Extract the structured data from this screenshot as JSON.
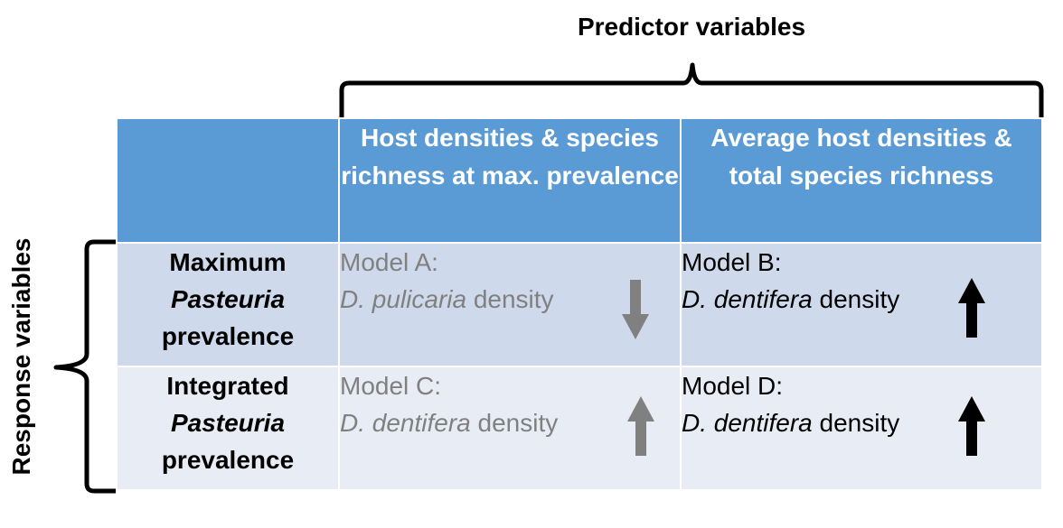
{
  "predictor_title": "Predictor variables",
  "response_title": "Response variables",
  "columns": [
    "Host densities & species richness at max. prevalence",
    "Average host densities & total species richness"
  ],
  "rows": [
    {
      "label_line1": "Maximum",
      "label_line2": "Pasteuria",
      "label_line3": "prevalence",
      "cells": [
        {
          "model": "Model A:",
          "species": "D. pulicaria",
          "suffix": " density",
          "color": "#808080",
          "direction": "down"
        },
        {
          "model": "Model B:",
          "species": "D. dentifera",
          "suffix": " density",
          "color": "#000000",
          "direction": "up"
        }
      ]
    },
    {
      "label_line1": "Integrated",
      "label_line2": "Pasteuria",
      "label_line3": "prevalence",
      "cells": [
        {
          "model": "Model C:",
          "species": "D. dentifera",
          "suffix": " density",
          "color": "#808080",
          "direction": "up"
        },
        {
          "model": "Model D:",
          "species": "D. dentifera",
          "suffix": " density",
          "color": "#000000",
          "direction": "up"
        }
      ]
    }
  ]
}
